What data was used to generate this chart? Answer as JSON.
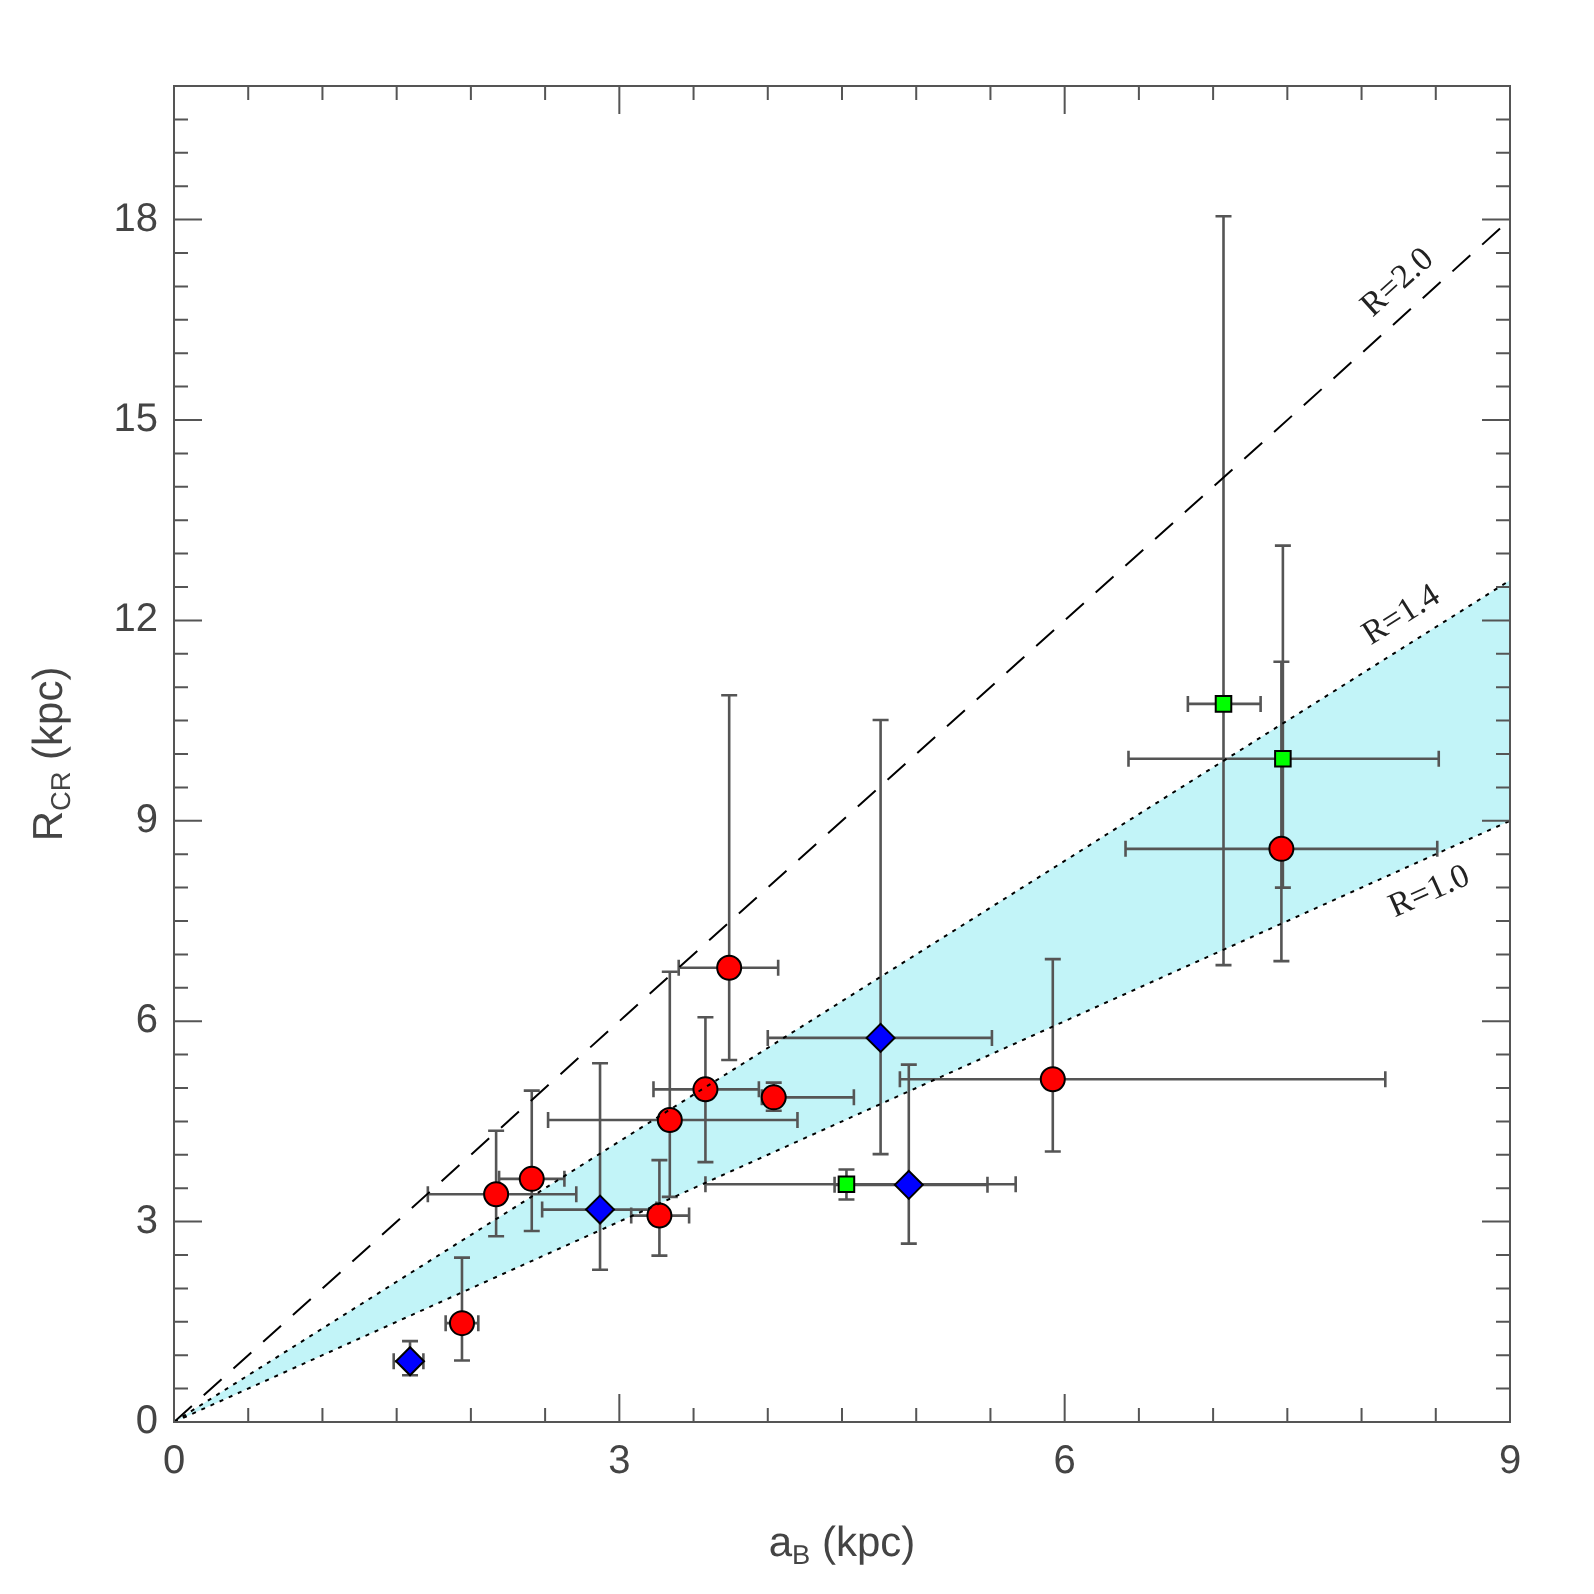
{
  "chart_data": {
    "type": "scatter",
    "xlabel": "a$_{B}$ (kpc)",
    "ylabel": "R$_{CR}$ (kpc)",
    "xlim": [
      0,
      9
    ],
    "ylim": [
      0,
      20
    ],
    "xticks": [
      0,
      {
        "value": 0.5,
        "label": null
      },
      {
        "value": 1,
        "label": null
      },
      {
        "value": 1.5,
        "label": null
      },
      {
        "value": 2,
        "label": null
      },
      {
        "value": 2.5,
        "label": null
      },
      3,
      {
        "value": 3.5,
        "label": null
      },
      {
        "value": 4,
        "label": null
      },
      {
        "value": 4.5,
        "label": null
      },
      {
        "value": 5,
        "label": null
      },
      {
        "value": 5.5,
        "label": null
      },
      6,
      {
        "value": 6.5,
        "label": null
      },
      {
        "value": 7,
        "label": null
      },
      {
        "value": 7.5,
        "label": null
      },
      {
        "value": 8,
        "label": null
      },
      {
        "value": 8.5,
        "label": null
      },
      9
    ],
    "yticks": [
      0,
      {
        "value": 0.5,
        "label": null
      },
      {
        "value": 1,
        "label": null
      },
      {
        "value": 1.5,
        "label": null
      },
      {
        "value": 2,
        "label": null
      },
      {
        "value": 2.5,
        "label": null
      },
      3,
      {
        "value": 3.5,
        "label": null
      },
      {
        "value": 4,
        "label": null
      },
      {
        "value": 4.5,
        "label": null
      },
      {
        "value": 5,
        "label": null
      },
      {
        "value": 5.5,
        "label": null
      },
      6,
      {
        "value": 6.5,
        "label": null
      },
      {
        "value": 7,
        "label": null
      },
      {
        "value": 7.5,
        "label": null
      },
      {
        "value": 8,
        "label": null
      },
      {
        "value": 8.5,
        "label": null
      },
      9,
      {
        "value": 9.5,
        "label": null
      },
      {
        "value": 10,
        "label": null
      },
      {
        "value": 10.5,
        "label": null
      },
      {
        "value": 11,
        "label": null
      },
      {
        "value": 11.5,
        "label": null
      },
      12,
      {
        "value": 12.5,
        "label": null
      },
      {
        "value": 13,
        "label": null
      },
      {
        "value": 13.5,
        "label": null
      },
      {
        "value": 14,
        "label": null
      },
      {
        "value": 14.5,
        "label": null
      },
      15,
      {
        "value": 15.5,
        "label": null
      },
      {
        "value": 16,
        "label": null
      },
      {
        "value": 16.5,
        "label": null
      },
      {
        "value": 17,
        "label": null
      },
      {
        "value": 17.5,
        "label": null
      },
      18,
      {
        "value": 18.5,
        "label": null
      },
      {
        "value": 19,
        "label": null
      },
      {
        "value": 19.5,
        "label": null
      },
      {
        "value": 20,
        "label": null
      }
    ],
    "grid": false,
    "legend": false,
    "series": [
      {
        "name": "R=2.0",
        "type": "line",
        "color": "#000000",
        "line_style": "dashed",
        "marker": "none",
        "x": [
          0,
          9
        ],
        "values": [
          0,
          18
        ]
      },
      {
        "name": "R=1.4",
        "type": "line",
        "color": "#000000",
        "line_style": "dotted",
        "marker": "none",
        "x": [
          0,
          9
        ],
        "values": [
          0,
          12.6
        ],
        "lower": [
          0,
          9
        ],
        "upper": [
          0,
          12.6
        ]
      },
      {
        "name": "R=1.0",
        "type": "line",
        "color": "#000000",
        "line_style": "dotted",
        "marker": "none",
        "x": [
          0,
          9
        ],
        "values": [
          0,
          9
        ]
      },
      {
        "color": "#ff0000",
        "marker": "circle",
        "x": [
          1.94,
          2.17,
          2.41,
          3.27,
          3.34,
          3.58,
          3.74,
          4.04,
          5.92,
          7.46
        ],
        "values": [
          1.48,
          3.41,
          3.64,
          3.09,
          4.52,
          4.98,
          6.8,
          4.86,
          5.13,
          8.58
        ],
        "errors": [
          [
            0.92,
            2.46
          ],
          [
            2.78,
            4.36
          ],
          [
            2.86,
            4.96
          ],
          [
            2.49,
            3.92
          ],
          [
            3.37,
            6.74
          ],
          [
            3.89,
            6.06
          ],
          [
            5.42,
            10.88
          ],
          [
            4.66,
            5.08
          ],
          [
            4.05,
            6.93
          ],
          [
            6.9,
            11.38
          ]
        ],
        "xerrors": [
          [
            1.83,
            2.05
          ],
          [
            1.71,
            2.71
          ],
          [
            2.19,
            2.63
          ],
          [
            3.08,
            3.47
          ],
          [
            2.52,
            4.2
          ],
          [
            3.23,
            3.94
          ],
          [
            3.4,
            4.07
          ],
          [
            3.96,
            4.58
          ],
          [
            4.89,
            8.16
          ],
          [
            6.41,
            8.51
          ]
        ]
      },
      {
        "color": "#00ff00",
        "marker": "square",
        "x": [
          4.53,
          7.07,
          7.47
        ],
        "values": [
          3.56,
          10.75,
          9.93
        ],
        "errors": [
          [
            3.33,
            3.78
          ],
          [
            6.84,
            18.05
          ],
          [
            8.0,
            13.12
          ]
        ],
        "xerrors": [
          [
            3.58,
            5.67
          ],
          [
            6.83,
            7.32
          ],
          [
            6.43,
            8.52
          ]
        ]
      },
      {
        "color": "#0000ff",
        "marker": "diamond",
        "x": [
          1.59,
          2.87,
          4.76,
          4.95
        ],
        "values": [
          0.91,
          3.18,
          5.75,
          3.55
        ],
        "errors": [
          [
            0.7,
            1.21
          ],
          [
            2.28,
            5.37
          ],
          [
            4.01,
            10.51
          ],
          [
            2.67,
            5.35
          ]
        ],
        "xerrors": [
          [
            1.48,
            1.68
          ],
          [
            2.48,
            3.25
          ],
          [
            4.0,
            5.51
          ],
          [
            4.45,
            5.48
          ]
        ]
      }
    ]
  }
}
